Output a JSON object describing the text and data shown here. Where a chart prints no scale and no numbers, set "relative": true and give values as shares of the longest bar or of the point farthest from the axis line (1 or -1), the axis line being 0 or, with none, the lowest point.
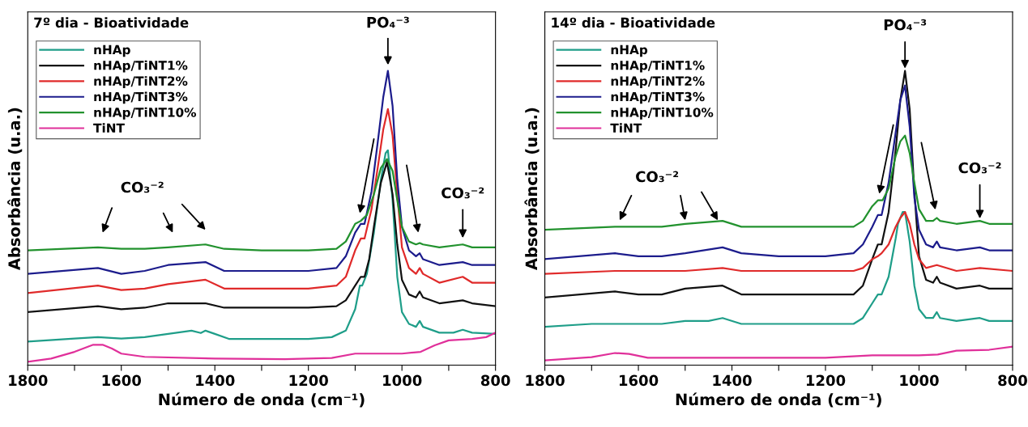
{
  "chart_data": [
    {
      "type": "line",
      "title": "7º dia - Bioatividade",
      "xlabel": "Número de onda (cm⁻¹)",
      "ylabel": "Absorbância (u.a.)",
      "relative": true,
      "xlim": [
        1800,
        800
      ],
      "xticks": [
        1800,
        {
          "value": 1700,
          "label": null
        },
        1600,
        {
          "value": 1500,
          "label": null
        },
        1400,
        {
          "value": 1300,
          "label": null
        },
        1200,
        {
          "value": 1100,
          "label": null
        },
        1000,
        {
          "value": 900,
          "label": null
        },
        800
      ],
      "tick_labels": "x",
      "legend": "top left",
      "series": [
        {
          "name": "nHAp",
          "color": "#1f9e89",
          "x": [
            1800,
            1700,
            1650,
            1600,
            1550,
            1500,
            1450,
            1430,
            1420,
            1400,
            1370,
            1300,
            1200,
            1150,
            1120,
            1100,
            1090,
            1085,
            1075,
            1060,
            1045,
            1035,
            1030,
            1020,
            1010,
            1000,
            985,
            970,
            962,
            955,
            920,
            890,
            870,
            850,
            800
          ],
          "values": [
            0.08,
            0.09,
            0.095,
            0.09,
            0.095,
            0.106,
            0.117,
            0.109,
            0.117,
            0.106,
            0.089,
            0.089,
            0.089,
            0.095,
            0.117,
            0.19,
            0.27,
            0.27,
            0.31,
            0.45,
            0.63,
            0.72,
            0.73,
            0.56,
            0.3,
            0.18,
            0.14,
            0.13,
            0.15,
            0.13,
            0.11,
            0.11,
            0.12,
            0.11,
            0.106
          ]
        },
        {
          "name": "nHAp/TiNT1%",
          "color": "#111111",
          "x": [
            1800,
            1650,
            1600,
            1550,
            1500,
            1420,
            1380,
            1300,
            1200,
            1140,
            1120,
            1100,
            1088,
            1080,
            1070,
            1060,
            1045,
            1032,
            1020,
            1010,
            1000,
            985,
            970,
            962,
            955,
            920,
            870,
            850,
            800
          ],
          "values": [
            0.18,
            0.2,
            0.19,
            0.195,
            0.21,
            0.21,
            0.195,
            0.195,
            0.195,
            0.2,
            0.22,
            0.27,
            0.3,
            0.3,
            0.36,
            0.47,
            0.62,
            0.69,
            0.58,
            0.41,
            0.29,
            0.24,
            0.23,
            0.25,
            0.23,
            0.21,
            0.22,
            0.21,
            0.2
          ]
        },
        {
          "name": "nHAp/TiNT2%",
          "color": "#e02a2a",
          "x": [
            1800,
            1650,
            1600,
            1550,
            1500,
            1420,
            1380,
            1300,
            1200,
            1140,
            1120,
            1100,
            1088,
            1080,
            1065,
            1050,
            1040,
            1030,
            1020,
            1010,
            1000,
            985,
            970,
            962,
            955,
            920,
            870,
            850,
            800
          ],
          "values": [
            0.245,
            0.27,
            0.255,
            0.26,
            0.275,
            0.29,
            0.26,
            0.26,
            0.26,
            0.27,
            0.3,
            0.39,
            0.43,
            0.43,
            0.53,
            0.69,
            0.8,
            0.87,
            0.78,
            0.58,
            0.4,
            0.33,
            0.31,
            0.33,
            0.31,
            0.28,
            0.3,
            0.28,
            0.28
          ]
        },
        {
          "name": "nHAp/TiNT3%",
          "color": "#1c1c8c",
          "x": [
            1800,
            1650,
            1600,
            1550,
            1500,
            1420,
            1380,
            1300,
            1200,
            1140,
            1120,
            1100,
            1088,
            1080,
            1065,
            1050,
            1040,
            1030,
            1020,
            1010,
            1000,
            985,
            970,
            962,
            955,
            920,
            870,
            850,
            800
          ],
          "values": [
            0.31,
            0.33,
            0.31,
            0.32,
            0.34,
            0.35,
            0.32,
            0.32,
            0.32,
            0.33,
            0.37,
            0.45,
            0.48,
            0.48,
            0.59,
            0.78,
            0.91,
            1.0,
            0.88,
            0.63,
            0.47,
            0.39,
            0.37,
            0.38,
            0.36,
            0.34,
            0.35,
            0.34,
            0.34
          ]
        },
        {
          "name": "nHAp/TiNT10%",
          "color": "#22922e",
          "x": [
            1800,
            1650,
            1600,
            1550,
            1500,
            1420,
            1380,
            1300,
            1200,
            1140,
            1120,
            1100,
            1088,
            1075,
            1060,
            1045,
            1032,
            1020,
            1010,
            1000,
            985,
            970,
            962,
            955,
            920,
            870,
            850,
            800
          ],
          "values": [
            0.39,
            0.4,
            0.395,
            0.395,
            0.4,
            0.41,
            0.395,
            0.39,
            0.39,
            0.395,
            0.42,
            0.48,
            0.49,
            0.51,
            0.58,
            0.67,
            0.7,
            0.66,
            0.56,
            0.47,
            0.42,
            0.41,
            0.415,
            0.41,
            0.4,
            0.41,
            0.4,
            0.4
          ]
        },
        {
          "name": "TiNT",
          "color": "#e0309a",
          "x": [
            1800,
            1750,
            1700,
            1660,
            1640,
            1620,
            1600,
            1550,
            1400,
            1250,
            1150,
            1100,
            1050,
            1000,
            960,
            930,
            900,
            850,
            820,
            800
          ],
          "values": [
            0.011,
            0.022,
            0.045,
            0.069,
            0.069,
            0.056,
            0.039,
            0.028,
            0.022,
            0.02,
            0.024,
            0.039,
            0.039,
            0.039,
            0.045,
            0.067,
            0.084,
            0.089,
            0.095,
            0.11
          ]
        }
      ],
      "annotations": [
        "PO₄⁻³",
        "CO₃⁻²",
        "CO₃⁻²"
      ]
    },
    {
      "type": "line",
      "title": "14º dia - Bioatividade",
      "xlabel": "Número de onda (cm⁻¹)",
      "ylabel": "Absorbância (u.a.)",
      "relative": true,
      "xlim": [
        1800,
        800
      ],
      "xticks": [
        1800,
        {
          "value": 1700,
          "label": null
        },
        1600,
        {
          "value": 1500,
          "label": null
        },
        1400,
        {
          "value": 1300,
          "label": null
        },
        1200,
        {
          "value": 1100,
          "label": null
        },
        1000,
        {
          "value": 900,
          "label": null
        },
        800
      ],
      "tick_labels": "x",
      "legend": "top left",
      "series": [
        {
          "name": "nHAp",
          "color": "#1f9e89",
          "x": [
            1800,
            1700,
            1600,
            1550,
            1500,
            1450,
            1420,
            1380,
            1300,
            1200,
            1140,
            1120,
            1100,
            1088,
            1080,
            1065,
            1050,
            1045,
            1035,
            1030,
            1020,
            1010,
            1000,
            985,
            970,
            962,
            955,
            920,
            870,
            850,
            800
          ],
          "values": [
            0.13,
            0.14,
            0.14,
            0.14,
            0.15,
            0.15,
            0.16,
            0.14,
            0.14,
            0.14,
            0.14,
            0.16,
            0.21,
            0.24,
            0.24,
            0.3,
            0.43,
            0.48,
            0.52,
            0.52,
            0.42,
            0.27,
            0.19,
            0.16,
            0.16,
            0.18,
            0.16,
            0.15,
            0.16,
            0.15,
            0.15
          ]
        },
        {
          "name": "nHAp/TiNT1%",
          "color": "#111111",
          "x": [
            1800,
            1650,
            1600,
            1550,
            1500,
            1420,
            1380,
            1300,
            1200,
            1140,
            1120,
            1100,
            1088,
            1080,
            1065,
            1050,
            1040,
            1030,
            1020,
            1010,
            1000,
            985,
            970,
            962,
            955,
            920,
            870,
            850,
            800
          ],
          "values": [
            0.23,
            0.25,
            0.24,
            0.24,
            0.26,
            0.27,
            0.24,
            0.24,
            0.24,
            0.24,
            0.27,
            0.36,
            0.41,
            0.41,
            0.52,
            0.73,
            0.9,
            1.0,
            0.87,
            0.59,
            0.37,
            0.29,
            0.28,
            0.3,
            0.28,
            0.26,
            0.27,
            0.26,
            0.26
          ]
        },
        {
          "name": "nHAp/TiNT2%",
          "color": "#e02a2a",
          "x": [
            1800,
            1650,
            1600,
            1500,
            1420,
            1380,
            1300,
            1200,
            1140,
            1120,
            1100,
            1088,
            1080,
            1065,
            1050,
            1040,
            1030,
            1020,
            1010,
            1000,
            985,
            962,
            920,
            870,
            800
          ],
          "values": [
            0.31,
            0.32,
            0.32,
            0.32,
            0.33,
            0.32,
            0.32,
            0.32,
            0.32,
            0.33,
            0.36,
            0.37,
            0.38,
            0.41,
            0.47,
            0.5,
            0.52,
            0.48,
            0.41,
            0.36,
            0.33,
            0.34,
            0.32,
            0.33,
            0.32
          ]
        },
        {
          "name": "nHAp/TiNT3%",
          "color": "#1c1c8c",
          "x": [
            1800,
            1650,
            1600,
            1550,
            1500,
            1420,
            1380,
            1300,
            1200,
            1140,
            1120,
            1100,
            1088,
            1080,
            1065,
            1050,
            1040,
            1030,
            1020,
            1010,
            1000,
            985,
            970,
            962,
            955,
            920,
            870,
            850,
            800
          ],
          "values": [
            0.36,
            0.38,
            0.37,
            0.37,
            0.38,
            0.4,
            0.38,
            0.37,
            0.37,
            0.38,
            0.41,
            0.47,
            0.51,
            0.51,
            0.62,
            0.79,
            0.9,
            0.95,
            0.81,
            0.57,
            0.46,
            0.41,
            0.4,
            0.42,
            0.4,
            0.39,
            0.4,
            0.39,
            0.39
          ]
        },
        {
          "name": "nHAp/TiNT10%",
          "color": "#22922e",
          "x": [
            1800,
            1650,
            1600,
            1550,
            1500,
            1420,
            1380,
            1300,
            1200,
            1140,
            1120,
            1100,
            1088,
            1078,
            1065,
            1050,
            1040,
            1030,
            1020,
            1010,
            1000,
            985,
            970,
            962,
            955,
            920,
            870,
            850,
            800
          ],
          "values": [
            0.46,
            0.47,
            0.47,
            0.47,
            0.48,
            0.49,
            0.47,
            0.47,
            0.47,
            0.47,
            0.49,
            0.54,
            0.56,
            0.56,
            0.6,
            0.71,
            0.76,
            0.78,
            0.72,
            0.62,
            0.53,
            0.49,
            0.49,
            0.5,
            0.49,
            0.48,
            0.49,
            0.48,
            0.48
          ]
        },
        {
          "name": "TiNT",
          "color": "#e0309a",
          "x": [
            1800,
            1700,
            1650,
            1620,
            1580,
            1400,
            1200,
            1100,
            1000,
            960,
            920,
            850,
            800
          ],
          "values": [
            0.016,
            0.027,
            0.041,
            0.038,
            0.025,
            0.025,
            0.025,
            0.033,
            0.033,
            0.036,
            0.049,
            0.052,
            0.063
          ]
        }
      ],
      "annotations": [
        "PO₄⁻³",
        "CO₃⁻²",
        "CO₃⁻²"
      ]
    }
  ]
}
